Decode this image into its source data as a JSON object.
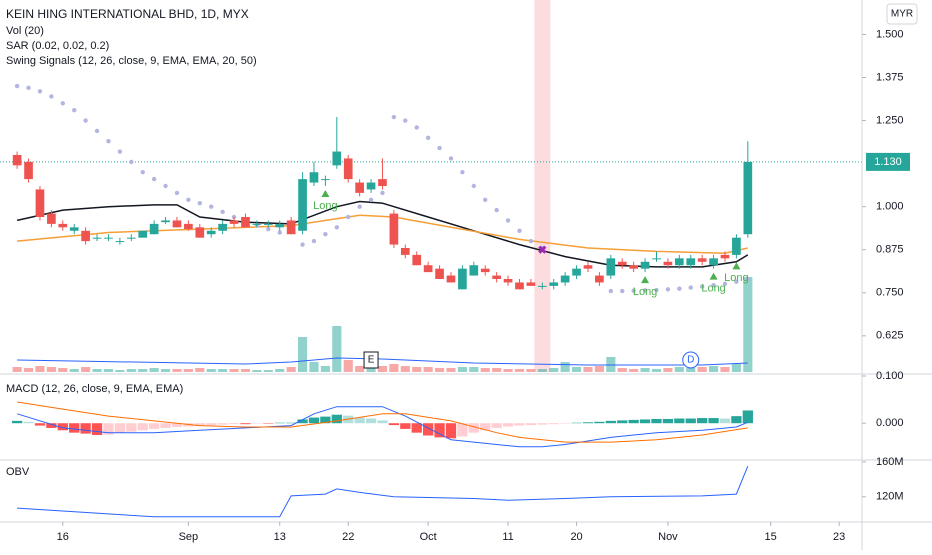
{
  "chart_data": [
    {
      "type": "candlestick",
      "title": "KEIN HING INTERNATIONAL BHD, 1D, MYX",
      "currency": "MYR",
      "indicators": [
        "Vol (20)",
        "SAR (0.02, 0.02, 0.2)",
        "Swing Signals (12, 26, close, 9, EMA, EMA, 20, 50)"
      ],
      "up_color": "#26a69a",
      "down_color": "#ef5350",
      "ylim": [
        0.52,
        1.6
      ],
      "yticks": [
        {
          "value": 1.5,
          "label": "1.500"
        },
        {
          "value": 1.375,
          "label": "1.375"
        },
        {
          "value": 1.25,
          "label": "1.250"
        },
        {
          "value": 1.0,
          "label": "1.000"
        },
        {
          "value": 0.875,
          "label": "0.875"
        },
        {
          "value": 0.75,
          "label": "0.750"
        },
        {
          "value": 0.625,
          "label": "0.625"
        }
      ],
      "last_price": {
        "value": 1.13,
        "label": "1.130"
      },
      "open": [
        1.15,
        1.13,
        1.05,
        0.98,
        0.95,
        0.93,
        0.93,
        0.91,
        0.91,
        0.9,
        0.91,
        0.91,
        0.92,
        0.955,
        0.96,
        0.95,
        0.94,
        0.92,
        0.93,
        0.96,
        0.97,
        0.95,
        0.95,
        0.94,
        0.96,
        0.93,
        1.07,
        1.08,
        1.12,
        1.14,
        1.07,
        1.05,
        1.08,
        0.98,
        0.88,
        0.86,
        0.83,
        0.82,
        0.8,
        0.76,
        0.8,
        0.82,
        0.8,
        0.79,
        0.78,
        0.78,
        0.77,
        0.77,
        0.78,
        0.8,
        0.83,
        0.8,
        0.8,
        0.84,
        0.83,
        0.82,
        0.85,
        0.84,
        0.83,
        0.83,
        0.85,
        0.83,
        0.86,
        0.86,
        0.92
      ],
      "high": [
        1.16,
        1.14,
        1.06,
        0.99,
        0.96,
        0.95,
        0.94,
        0.92,
        0.92,
        0.91,
        0.92,
        0.93,
        0.96,
        0.97,
        0.97,
        0.96,
        0.95,
        0.94,
        0.96,
        0.97,
        0.98,
        0.96,
        0.96,
        0.96,
        0.97,
        1.1,
        1.13,
        1.09,
        1.26,
        1.15,
        1.08,
        1.08,
        1.14,
        0.99,
        0.89,
        0.87,
        0.84,
        0.83,
        0.81,
        0.83,
        0.84,
        0.83,
        0.81,
        0.8,
        0.79,
        0.79,
        0.78,
        0.79,
        0.81,
        0.83,
        0.84,
        0.81,
        0.86,
        0.85,
        0.84,
        0.85,
        0.87,
        0.85,
        0.86,
        0.86,
        0.86,
        0.86,
        0.87,
        0.92,
        1.19
      ],
      "low": [
        1.11,
        1.07,
        0.96,
        0.94,
        0.93,
        0.92,
        0.89,
        0.9,
        0.9,
        0.89,
        0.9,
        0.91,
        0.92,
        0.95,
        0.94,
        0.93,
        0.91,
        0.91,
        0.92,
        0.94,
        0.94,
        0.94,
        0.94,
        0.93,
        0.92,
        0.92,
        1.06,
        1.06,
        1.11,
        1.07,
        1.03,
        1.04,
        1.05,
        0.88,
        0.85,
        0.83,
        0.81,
        0.79,
        0.78,
        0.76,
        0.8,
        0.8,
        0.78,
        0.77,
        0.76,
        0.77,
        0.76,
        0.76,
        0.77,
        0.79,
        0.81,
        0.77,
        0.79,
        0.82,
        0.81,
        0.81,
        0.84,
        0.82,
        0.82,
        0.82,
        0.83,
        0.82,
        0.84,
        0.85,
        0.91
      ],
      "close": [
        1.12,
        1.08,
        0.97,
        0.95,
        0.94,
        0.94,
        0.9,
        0.91,
        0.91,
        0.9,
        0.91,
        0.93,
        0.95,
        0.96,
        0.94,
        0.935,
        0.91,
        0.93,
        0.95,
        0.95,
        0.94,
        0.95,
        0.95,
        0.95,
        0.92,
        1.08,
        1.1,
        1.08,
        1.16,
        1.08,
        1.04,
        1.07,
        1.06,
        0.89,
        0.86,
        0.83,
        0.81,
        0.79,
        0.78,
        0.82,
        0.83,
        0.81,
        0.79,
        0.78,
        0.76,
        0.77,
        0.77,
        0.78,
        0.8,
        0.82,
        0.82,
        0.78,
        0.85,
        0.83,
        0.82,
        0.84,
        0.85,
        0.83,
        0.85,
        0.85,
        0.84,
        0.85,
        0.85,
        0.91,
        1.13
      ],
      "volume": [
        5,
        4,
        6,
        5,
        4,
        3,
        5,
        3,
        3,
        2,
        3,
        3,
        4,
        3,
        3,
        3,
        4,
        3,
        3,
        3,
        3,
        2,
        2,
        3,
        5,
        35,
        10,
        6,
        46,
        12,
        6,
        5,
        6,
        8,
        6,
        5,
        5,
        4,
        4,
        5,
        5,
        4,
        4,
        3,
        3,
        3,
        3,
        4,
        10,
        5,
        5,
        6,
        15,
        4,
        3,
        4,
        3,
        4,
        5,
        4,
        5,
        6,
        5,
        8,
        95
      ],
      "volume_ylim": [
        0,
        100
      ],
      "volume_ma": {
        "x": [
          0,
          20,
          24,
          28,
          32,
          40,
          50,
          60,
          64
        ],
        "values": [
          12,
          8,
          10,
          14,
          13,
          9,
          7,
          7,
          9
        ],
        "color": "#2962ff"
      },
      "lines": [
        {
          "name": "EMA 20",
          "color": "#131722",
          "x": [
            0,
            4,
            8,
            12,
            14,
            16,
            20,
            24,
            28,
            30,
            32,
            36,
            40,
            44,
            48,
            52,
            56,
            60,
            63,
            64
          ],
          "values": [
            0.96,
            0.99,
            1.0,
            1.005,
            1.005,
            0.97,
            0.955,
            0.95,
            1.0,
            1.015,
            1.01,
            0.97,
            0.93,
            0.89,
            0.855,
            0.83,
            0.825,
            0.825,
            0.84,
            0.86
          ]
        },
        {
          "name": "EMA 50",
          "color": "#f59f36",
          "x": [
            0,
            8,
            16,
            24,
            30,
            33,
            38,
            44,
            50,
            56,
            62,
            64
          ],
          "values": [
            0.9,
            0.925,
            0.935,
            0.945,
            0.975,
            0.97,
            0.94,
            0.905,
            0.88,
            0.87,
            0.865,
            0.88
          ]
        }
      ],
      "sar": {
        "color": "#b2b5e0",
        "x": [
          0,
          1,
          2,
          3,
          4,
          5,
          6,
          7,
          8,
          9,
          10,
          11,
          12,
          13,
          14,
          15,
          16,
          17,
          18,
          19,
          20,
          21,
          22,
          23,
          25,
          26,
          27,
          28,
          29,
          30,
          31,
          32,
          33,
          34,
          35,
          36,
          37,
          38,
          39,
          40,
          41,
          42,
          43,
          44,
          45,
          46,
          52,
          53,
          54,
          55,
          56,
          57,
          58,
          59,
          60,
          61,
          62,
          63,
          64
        ],
        "values": [
          1.35,
          1.345,
          1.335,
          1.32,
          1.3,
          1.28,
          1.25,
          1.22,
          1.19,
          1.16,
          1.13,
          1.1,
          1.08,
          1.06,
          1.04,
          1.02,
          1.01,
          1.0,
          0.985,
          0.97,
          0.96,
          0.945,
          0.935,
          0.925,
          0.89,
          0.9,
          0.92,
          0.94,
          0.97,
          1.0,
          1.02,
          1.04,
          1.26,
          1.25,
          1.23,
          1.2,
          1.17,
          1.14,
          1.1,
          1.06,
          1.02,
          0.99,
          0.96,
          0.93,
          0.9,
          0.88,
          0.755,
          0.755,
          0.756,
          0.757,
          0.758,
          0.76,
          0.762,
          0.765,
          0.768,
          0.772,
          0.776,
          0.782,
          0.79
        ]
      },
      "highlight_x": 46,
      "signals": [
        {
          "label": "Long",
          "x": 27
        },
        {
          "label": "Long",
          "x": 55
        },
        {
          "label": "Long",
          "x": 61
        },
        {
          "label": "Long",
          "x": 63
        }
      ],
      "events": [
        {
          "label": "E",
          "x": 31
        },
        {
          "label": "D",
          "x": 59
        }
      ]
    },
    {
      "type": "macd",
      "title": "MACD (12, 26, close, 9, EMA, EMA)",
      "ylim": [
        -0.08,
        0.1
      ],
      "yticks": [
        {
          "value": 0.1,
          "label": "0.100"
        },
        {
          "value": 0,
          "label": "0.000"
        }
      ],
      "histogram": [
        0.005,
        0.003,
        -0.005,
        -0.01,
        -0.015,
        -0.02,
        -0.022,
        -0.025,
        -0.024,
        -0.02,
        -0.018,
        -0.015,
        -0.012,
        -0.01,
        -0.008,
        -0.007,
        -0.006,
        -0.004,
        -0.003,
        -0.002,
        -0.002,
        -0.001,
        -0.001,
        0.001,
        0.001,
        0.008,
        0.012,
        0.014,
        0.018,
        0.016,
        0.012,
        0.01,
        0.006,
        -0.004,
        -0.012,
        -0.02,
        -0.026,
        -0.03,
        -0.032,
        -0.028,
        -0.02,
        -0.015,
        -0.01,
        -0.007,
        -0.005,
        -0.004,
        -0.003,
        -0.002,
        -0.001,
        0.001,
        0.002,
        0.003,
        0.005,
        0.006,
        0.007,
        0.008,
        0.009,
        0.009,
        0.01,
        0.01,
        0.011,
        0.011,
        0.01,
        0.015,
        0.027
      ],
      "lines": [
        {
          "name": "MACD",
          "color": "#2962ff",
          "x": [
            0,
            4,
            8,
            12,
            16,
            20,
            24,
            26,
            28,
            32,
            34,
            36,
            38,
            42,
            44,
            46,
            48,
            52,
            56,
            60,
            63,
            64
          ],
          "values": [
            0.02,
            -0.01,
            -0.02,
            -0.02,
            -0.015,
            -0.01,
            -0.005,
            0.02,
            0.035,
            0.035,
            0.015,
            -0.01,
            -0.035,
            -0.045,
            -0.05,
            -0.05,
            -0.045,
            -0.03,
            -0.02,
            -0.015,
            -0.008,
            0.002
          ]
        },
        {
          "name": "Signal",
          "color": "#ff6d00",
          "x": [
            0,
            4,
            8,
            12,
            16,
            20,
            24,
            28,
            32,
            34,
            38,
            42,
            44,
            48,
            52,
            56,
            60,
            64
          ],
          "values": [
            0.045,
            0.03,
            0.015,
            0.005,
            -0.005,
            -0.008,
            -0.008,
            0.005,
            0.02,
            0.02,
            0.005,
            -0.02,
            -0.03,
            -0.04,
            -0.04,
            -0.035,
            -0.025,
            -0.01
          ]
        }
      ]
    },
    {
      "type": "line",
      "title": "OBV",
      "ylim": [
        91000000,
        161000000
      ],
      "yticks": [
        {
          "value": 160000000,
          "label": "160M"
        },
        {
          "value": 120000000,
          "label": "120M"
        }
      ],
      "series": [
        {
          "name": "OBV",
          "color": "#2962ff",
          "x": [
            0,
            12,
            23,
            24,
            27,
            28,
            30,
            33,
            40,
            43,
            48,
            52,
            60,
            63,
            64
          ],
          "values": [
            107000000,
            97000000,
            97000000,
            121000000,
            123000000,
            129000000,
            125000000,
            120000000,
            118000000,
            116000000,
            118000000,
            120000000,
            121000000,
            123000000,
            155000000
          ]
        }
      ],
      "xlim": [
        -1.5,
        74
      ],
      "xticks": [
        {
          "value": 4,
          "label": "16"
        },
        {
          "value": 15,
          "label": "Sep"
        },
        {
          "value": 23,
          "label": "13"
        },
        {
          "value": 29,
          "label": "22"
        },
        {
          "value": 36,
          "label": "Oct"
        },
        {
          "value": 43,
          "label": "11"
        },
        {
          "value": 49,
          "label": "20"
        },
        {
          "value": 57,
          "label": "Nov"
        },
        {
          "value": 66,
          "label": "15"
        },
        {
          "value": 72,
          "label": "23"
        }
      ]
    }
  ]
}
